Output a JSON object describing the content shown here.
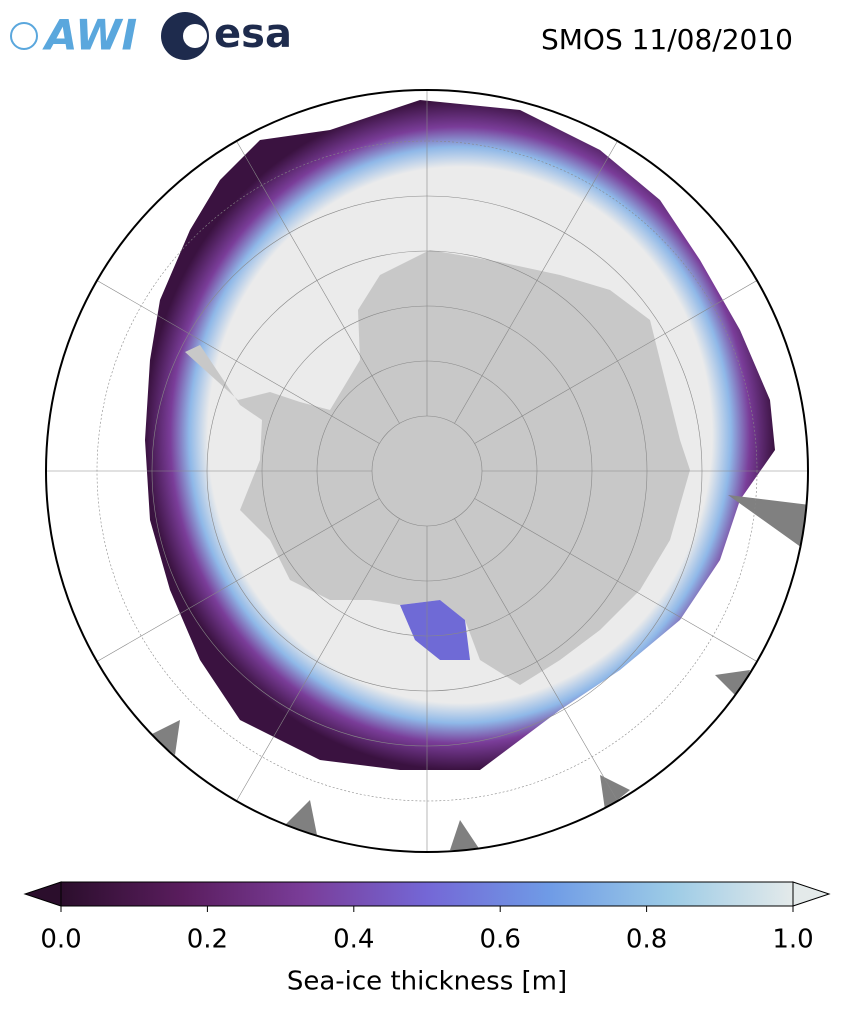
{
  "header": {
    "logos": [
      "AWI",
      "esa"
    ],
    "title": "SMOS 11/08/2010"
  },
  "colorbar": {
    "label": "Sea-ice thickness [m]",
    "lim": [
      0,
      1
    ],
    "ticks": [
      {
        "value": 0,
        "label": "0.0"
      },
      {
        "value": 0.2,
        "label": "0.2"
      },
      {
        "value": 0.4,
        "label": "0.4"
      },
      {
        "value": 0.6,
        "label": "0.6"
      },
      {
        "value": 0.8,
        "label": "0.8"
      },
      {
        "value": 1,
        "label": "1.0"
      }
    ],
    "colors": [
      "#2b0e2c",
      "#5a1d5e",
      "#7a3d99",
      "#7467d6",
      "#6f9be6",
      "#9ccbe6",
      "#e4eaea"
    ],
    "extend": "both"
  }
}
